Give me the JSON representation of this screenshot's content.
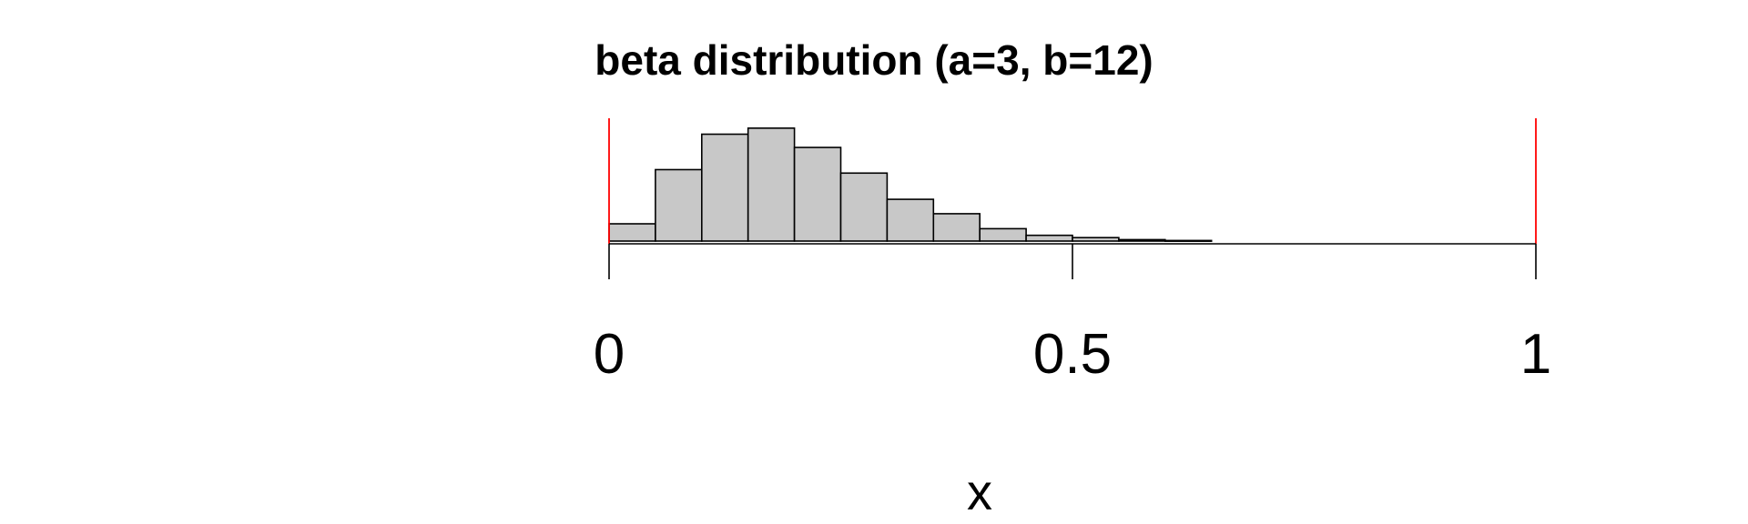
{
  "chart_data": {
    "type": "histogram",
    "title": "beta distribution (a=3, b=12)",
    "xlabel": "x",
    "ylabel": "",
    "xlim": [
      0,
      1
    ],
    "xticks": [
      0,
      0.5,
      1
    ],
    "xtick_labels": [
      "0",
      "0.5",
      "1"
    ],
    "bin_width": 0.05,
    "bins": [
      {
        "start": 0.0,
        "end": 0.05,
        "density": 0.6
      },
      {
        "start": 0.05,
        "end": 0.1,
        "density": 2.48
      },
      {
        "start": 0.1,
        "end": 0.15,
        "density": 3.71
      },
      {
        "start": 0.15,
        "end": 0.2,
        "density": 3.92
      },
      {
        "start": 0.2,
        "end": 0.25,
        "density": 3.25
      },
      {
        "start": 0.25,
        "end": 0.3,
        "density": 2.36
      },
      {
        "start": 0.3,
        "end": 0.35,
        "density": 1.45
      },
      {
        "start": 0.35,
        "end": 0.4,
        "density": 0.95
      },
      {
        "start": 0.4,
        "end": 0.45,
        "density": 0.43
      },
      {
        "start": 0.45,
        "end": 0.5,
        "density": 0.2
      },
      {
        "start": 0.5,
        "end": 0.55,
        "density": 0.12
      },
      {
        "start": 0.55,
        "end": 0.6,
        "density": 0.05
      },
      {
        "start": 0.6,
        "end": 0.65,
        "density": 0.02
      }
    ],
    "ylim": [
      0,
      4.2
    ],
    "reference_lines": [
      0,
      1
    ],
    "colors": {
      "bar_fill": "#c8c8c8",
      "bar_stroke": "#000000",
      "reference_line": "#ff0000"
    },
    "grid": false,
    "legend": false
  }
}
